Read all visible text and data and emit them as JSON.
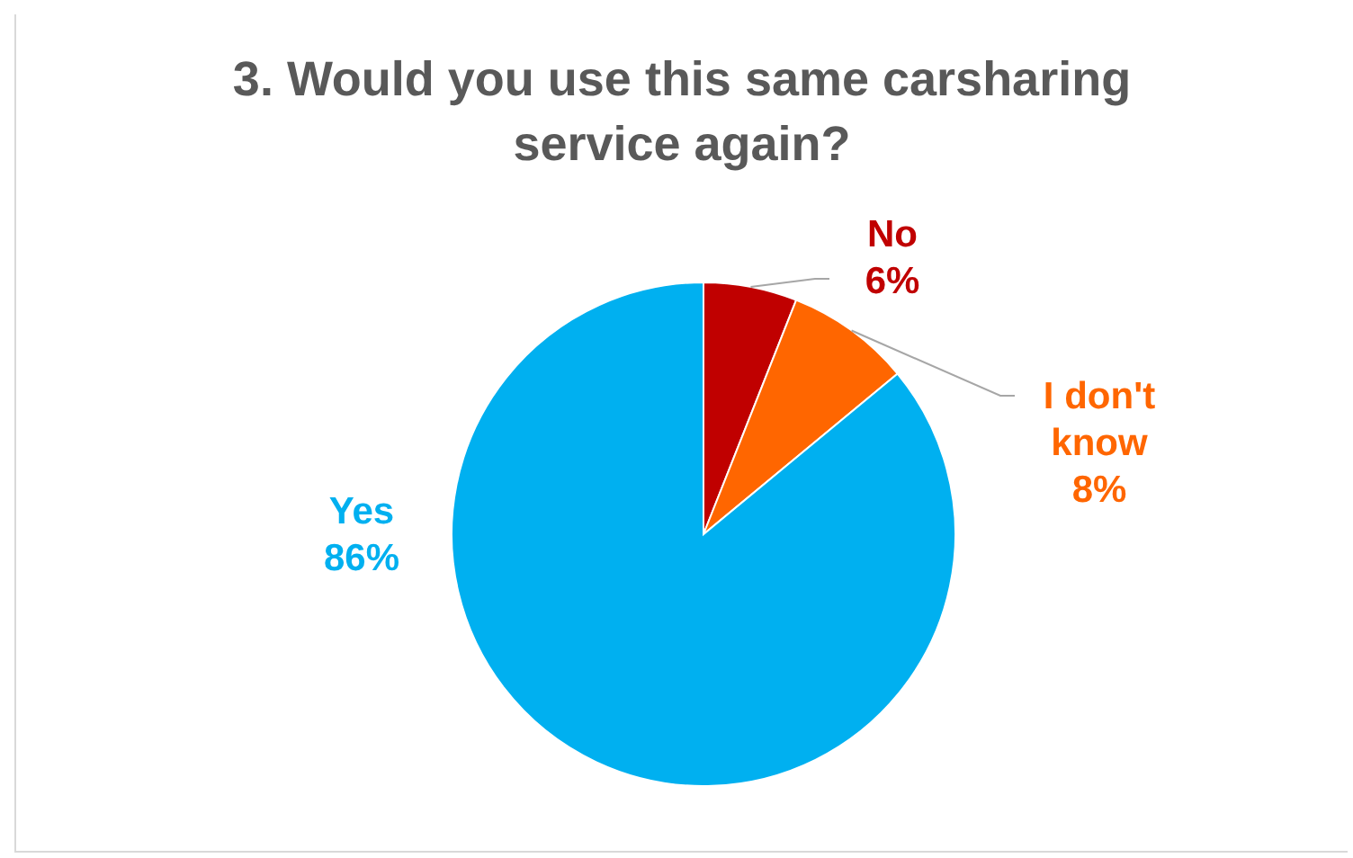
{
  "chart_data": {
    "type": "pie",
    "title": "3. Would you use this same carsharing service again?",
    "categories": [
      "No",
      "I don't know",
      "Yes"
    ],
    "values": [
      6,
      8,
      86
    ],
    "value_labels": [
      "6%",
      "8%",
      "86%"
    ],
    "colors": [
      "#c00000",
      "#ff6600",
      "#00b0f0"
    ]
  }
}
